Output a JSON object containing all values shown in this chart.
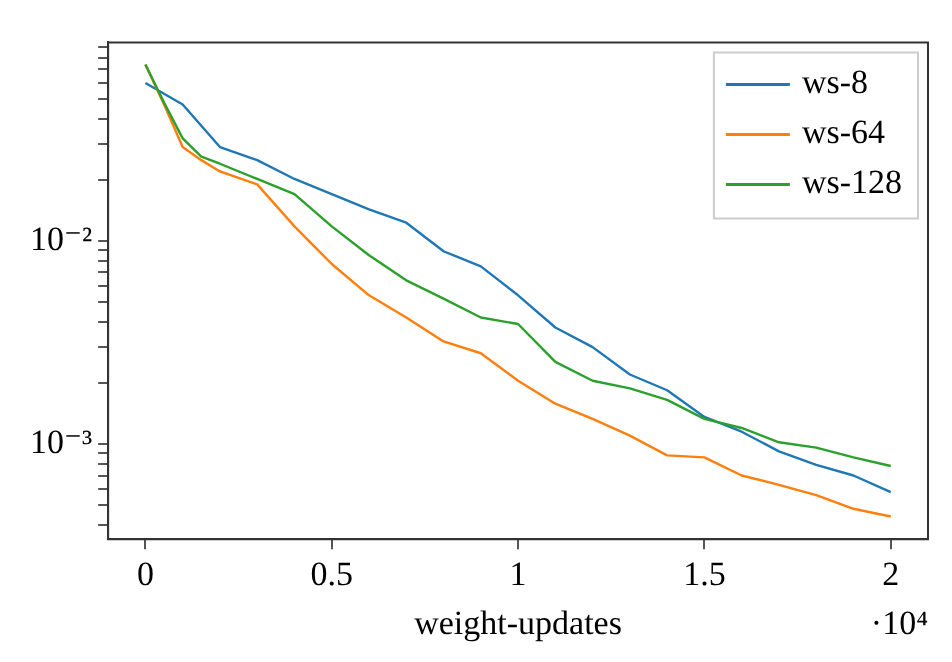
{
  "chart_data": {
    "type": "line",
    "xlabel": "weight-updates",
    "annotations": [
      "·10⁴"
    ],
    "x": [
      0,
      0.1,
      0.2,
      0.3,
      0.4,
      0.5,
      0.6,
      0.7,
      0.8,
      0.9,
      1.0,
      1.1,
      1.2,
      1.3,
      1.4,
      1.5,
      1.6,
      1.7,
      1.8,
      1.9,
      2.0
    ],
    "series": [
      {
        "name": "ws-8",
        "color": "#1f77b4",
        "values": [
          0.06,
          0.047,
          0.029,
          0.025,
          0.0202,
          0.017,
          0.0143,
          0.0123,
          0.0089,
          0.0075,
          0.0054,
          0.00375,
          0.003,
          0.0022,
          0.00184,
          0.00136,
          0.00115,
          0.00092,
          0.00079,
          0.0007,
          0.00058
        ]
      },
      {
        "name": "ws-64",
        "color": "#ff7f0e",
        "x": [
          0,
          0.05,
          0.1,
          0.15,
          0.2,
          0.3,
          0.4,
          0.5,
          0.6,
          0.7,
          0.8,
          0.9,
          1.0,
          1.1,
          1.2,
          1.3,
          1.4,
          1.5,
          1.6,
          1.7,
          1.8,
          1.9,
          2.0
        ],
        "values": [
          0.074,
          0.047,
          0.029,
          0.025,
          0.022,
          0.019,
          0.0118,
          0.0077,
          0.0054,
          0.0042,
          0.0032,
          0.0028,
          0.00205,
          0.00158,
          0.00133,
          0.0011,
          0.00088,
          0.00086,
          0.0007,
          0.00063,
          0.00056,
          0.00048,
          0.00044
        ]
      },
      {
        "name": "ws-128",
        "color": "#2ca02c",
        "x": [
          0,
          0.05,
          0.1,
          0.15,
          0.2,
          0.3,
          0.4,
          0.5,
          0.6,
          0.7,
          0.8,
          0.9,
          1.0,
          1.1,
          1.2,
          1.3,
          1.4,
          1.5,
          1.6,
          1.7,
          1.8,
          1.9,
          2.0
        ],
        "values": [
          0.074,
          0.048,
          0.032,
          0.026,
          0.024,
          0.0202,
          0.017,
          0.0118,
          0.0085,
          0.0064,
          0.0052,
          0.0042,
          0.0039,
          0.00254,
          0.00205,
          0.00188,
          0.00165,
          0.00133,
          0.0012,
          0.00102,
          0.00096,
          0.00086,
          0.00078
        ]
      }
    ],
    "xlim": [
      -0.1,
      2.1
    ],
    "xticks": [
      0,
      0.5,
      1,
      1.5,
      2
    ],
    "ylim": [
      0.00034,
      0.095
    ],
    "yticks": [
      {
        "value": 0.0004,
        "label": null
      },
      {
        "value": 0.0005,
        "label": null
      },
      {
        "value": 0.0006,
        "label": null
      },
      {
        "value": 0.0007,
        "label": null
      },
      {
        "value": 0.0008,
        "label": null
      },
      {
        "value": 0.0009,
        "label": null
      },
      {
        "value": 0.001,
        "label": "10⁻³"
      },
      {
        "value": 0.002,
        "label": null
      },
      {
        "value": 0.003,
        "label": null
      },
      {
        "value": 0.004,
        "label": null
      },
      {
        "value": 0.005,
        "label": null
      },
      {
        "value": 0.006,
        "label": null
      },
      {
        "value": 0.007,
        "label": null
      },
      {
        "value": 0.008,
        "label": null
      },
      {
        "value": 0.009,
        "label": null
      },
      {
        "value": 0.01,
        "label": "10⁻²"
      },
      {
        "value": 0.02,
        "label": null
      },
      {
        "value": 0.03,
        "label": null
      },
      {
        "value": 0.04,
        "label": null
      },
      {
        "value": 0.05,
        "label": null
      },
      {
        "value": 0.06,
        "label": null
      },
      {
        "value": 0.07,
        "label": null
      },
      {
        "value": 0.08,
        "label": null
      },
      {
        "value": 0.09,
        "label": null
      }
    ],
    "log": true,
    "grid": false,
    "legend": "top right",
    "marker": "none",
    "line_style": "solid"
  }
}
